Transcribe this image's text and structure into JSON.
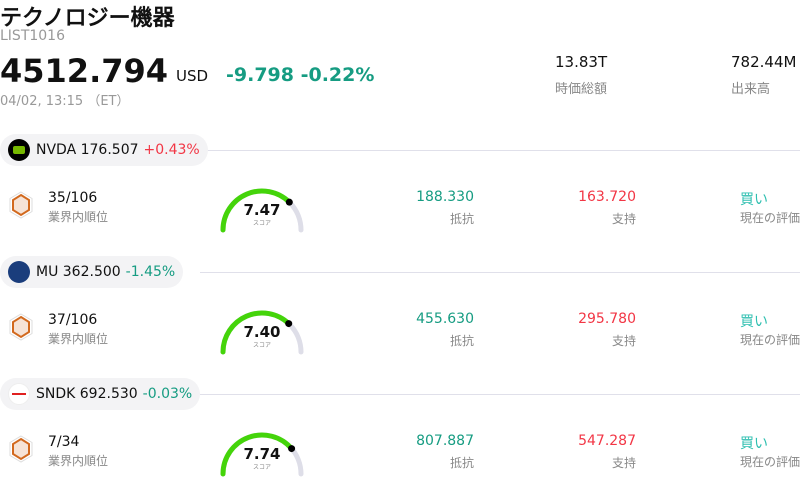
{
  "header": {
    "title": "テクノロジー機器",
    "code": "LIST1016",
    "price": "4512.794",
    "currency": "USD",
    "change": "-9.798 -0.22%",
    "time": "04/02, 13:15 （ET）"
  },
  "stats": [
    {
      "value": "13.83T",
      "label": "時価総額"
    },
    {
      "value": "782.44M",
      "label": "出来高"
    }
  ],
  "colors": {
    "up": "#f23645",
    "down": "#169c82",
    "buy": "#2ebfb0",
    "gauge": "#44d40a"
  },
  "stocks": [
    {
      "ticker_price": "NVDA 176.507",
      "change": "+0.43%",
      "direction": "up",
      "logo_icon": "nvidia-logo-icon",
      "rank": "35/106",
      "rank_label": "業界内順位",
      "score": 7.47,
      "score_text": "7.47",
      "score_label": "スコア",
      "resistance": "188.330",
      "resistance_label": "抵抗",
      "support": "163.720",
      "support_label": "支持",
      "rating": "買い",
      "rating_label": "現在の評価"
    },
    {
      "ticker_price": "MU 362.500",
      "change": "-1.45%",
      "direction": "down",
      "logo_icon": "micron-logo-icon",
      "rank": "37/106",
      "rank_label": "業界内順位",
      "score": 7.4,
      "score_text": "7.40",
      "score_label": "スコア",
      "resistance": "455.630",
      "resistance_label": "抵抗",
      "support": "295.780",
      "support_label": "支持",
      "rating": "買い",
      "rating_label": "現在の評価"
    },
    {
      "ticker_price": "SNDK 692.530",
      "change": "-0.03%",
      "direction": "down",
      "logo_icon": "sandisk-logo-icon",
      "rank": "7/34",
      "rank_label": "業界内順位",
      "score": 7.74,
      "score_text": "7.74",
      "score_label": "スコア",
      "resistance": "807.887",
      "resistance_label": "抵抗",
      "support": "547.287",
      "support_label": "支持",
      "rating": "買い",
      "rating_label": "現在の評価"
    }
  ]
}
